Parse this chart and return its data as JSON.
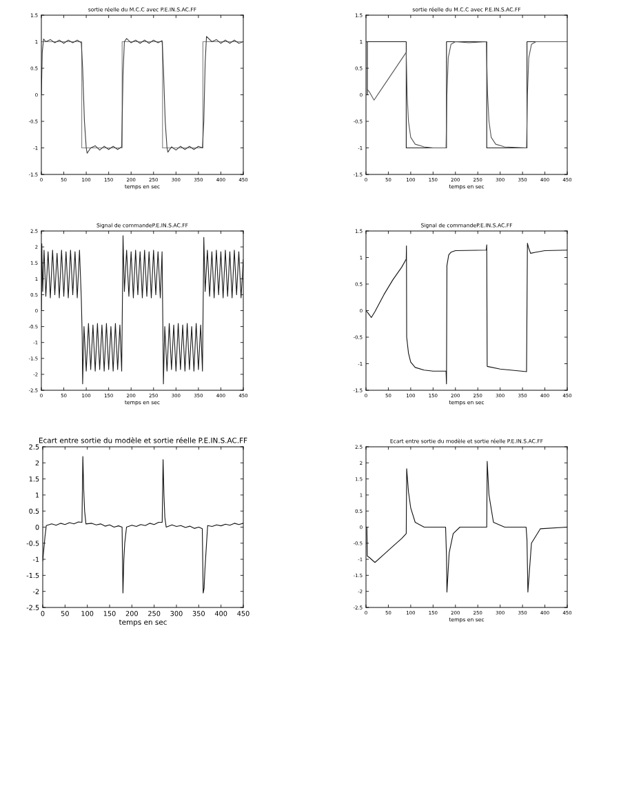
{
  "chart_data": [
    {
      "type": "line",
      "title": "sortie réelle du M.C.C avec P.E.IN.S.AC.FF",
      "xlabel": "temps en sec",
      "xlim": [
        0,
        450
      ],
      "xticks": [
        0,
        50,
        100,
        150,
        200,
        250,
        300,
        350,
        400,
        450
      ],
      "ylim": [
        -1.5,
        1.5
      ],
      "yticks": [
        -1.5,
        -1,
        -0.5,
        0,
        0.5,
        1,
        1.5
      ],
      "series": [
        {
          "color": "#808080",
          "x": [
            0,
            90,
            90,
            180,
            180,
            270,
            270,
            360,
            360,
            450
          ],
          "values": [
            1,
            1,
            -1,
            -1,
            1,
            1,
            -1,
            -1,
            1,
            1
          ]
        },
        {
          "color": "#3a3a3a",
          "x": [
            0,
            2,
            5,
            10,
            20,
            30,
            40,
            50,
            60,
            70,
            80,
            89,
            92,
            96,
            100,
            102,
            110,
            120,
            130,
            140,
            150,
            160,
            170,
            179,
            182,
            185,
            190,
            200,
            210,
            220,
            230,
            240,
            250,
            260,
            269,
            272,
            276,
            280,
            282,
            290,
            300,
            310,
            320,
            330,
            340,
            350,
            359,
            362,
            365,
            368,
            380,
            390,
            400,
            410,
            420,
            430,
            440,
            450
          ],
          "values": [
            0,
            0.8,
            1.05,
            1.0,
            1.04,
            0.98,
            1.03,
            0.97,
            1.03,
            0.98,
            1.03,
            0.98,
            0.5,
            -0.5,
            -1.0,
            -1.1,
            -1.0,
            -0.96,
            -1.04,
            -0.97,
            -1.03,
            -0.97,
            -1.03,
            -0.98,
            0.4,
            1.0,
            1.06,
            0.98,
            1.03,
            0.97,
            1.03,
            0.97,
            1.03,
            0.98,
            1.02,
            0.5,
            -0.5,
            -1.0,
            -1.08,
            -0.98,
            -1.04,
            -0.97,
            -1.03,
            -0.97,
            -1.03,
            -0.97,
            -1.0,
            -0.5,
            0.6,
            1.1,
            1.0,
            1.04,
            0.97,
            1.03,
            0.97,
            1.03,
            0.97,
            1.0
          ]
        }
      ]
    },
    {
      "type": "line",
      "title": "sortie réelle du M.C.C avec P.E.IN.S.AC.FF",
      "xlabel": "temps en sec",
      "xlim": [
        0,
        450
      ],
      "xticks": [
        0,
        50,
        100,
        150,
        200,
        250,
        300,
        350,
        400,
        450
      ],
      "ylim": [
        -1.5,
        1.5
      ],
      "yticks": [
        -1.5,
        -1,
        -0.5,
        0,
        0.5,
        1,
        1.5
      ],
      "series": [
        {
          "color": "#1a1a1a",
          "x": [
            3,
            3,
            90,
            90,
            180,
            180,
            270,
            270,
            360,
            360,
            450
          ],
          "values": [
            0,
            1,
            1,
            -1,
            -1,
            1,
            1,
            -1,
            -1,
            1,
            1
          ]
        },
        {
          "color": "#555555",
          "x": [
            3,
            8,
            18,
            30,
            50,
            70,
            90,
            92,
            95,
            100,
            110,
            130,
            150,
            179,
            181,
            184,
            190,
            200,
            230,
            269,
            272,
            275,
            280,
            290,
            310,
            359,
            361,
            364,
            370,
            380,
            450
          ],
          "values": [
            0.1,
            0.05,
            -0.1,
            0.05,
            0.3,
            0.55,
            0.8,
            0.0,
            -0.5,
            -0.8,
            -0.93,
            -0.98,
            -1.0,
            -1.0,
            0.0,
            0.7,
            0.95,
            1.0,
            0.98,
            1.0,
            0.0,
            -0.5,
            -0.8,
            -0.93,
            -0.98,
            -1.0,
            0.0,
            0.7,
            0.95,
            1.0,
            1.0
          ]
        }
      ]
    },
    {
      "type": "line",
      "title": "Signal de commandeP.E.IN.S.AC.FF",
      "xlabel": "temps en sec",
      "xlim": [
        0,
        450
      ],
      "xticks": [
        0,
        50,
        100,
        150,
        200,
        250,
        300,
        350,
        400,
        450
      ],
      "ylim": [
        -2.5,
        2.5
      ],
      "yticks": [
        -2.5,
        -2,
        -1.5,
        -1,
        -0.5,
        0,
        0.5,
        1,
        1.5,
        2,
        2.5
      ],
      "series": [
        {
          "color": "#1a1a1a",
          "x": [
            0,
            1,
            3,
            6,
            10,
            15,
            20,
            25,
            30,
            35,
            40,
            45,
            50,
            55,
            60,
            65,
            70,
            75,
            80,
            85,
            89,
            91,
            92,
            95,
            100,
            105,
            110,
            115,
            120,
            125,
            130,
            135,
            140,
            145,
            150,
            155,
            160,
            165,
            170,
            175,
            179,
            181,
            182,
            185,
            190,
            195,
            200,
            205,
            210,
            215,
            220,
            225,
            230,
            235,
            240,
            245,
            250,
            255,
            260,
            265,
            269,
            271,
            272,
            275,
            280,
            285,
            290,
            295,
            300,
            305,
            310,
            315,
            320,
            325,
            330,
            335,
            340,
            345,
            350,
            355,
            359,
            361,
            362,
            365,
            370,
            375,
            380,
            385,
            390,
            395,
            400,
            405,
            410,
            415,
            420,
            425,
            430,
            435,
            440,
            445,
            450
          ],
          "values": [
            0,
            2.1,
            0.6,
            1.9,
            0.45,
            1.85,
            0.4,
            1.9,
            0.5,
            1.8,
            0.4,
            1.9,
            0.45,
            1.85,
            0.4,
            1.9,
            0.5,
            1.85,
            0.4,
            1.9,
            0.4,
            -0.8,
            -2.3,
            -0.5,
            -1.9,
            -0.4,
            -1.85,
            -0.45,
            -1.9,
            -0.4,
            -1.85,
            -0.45,
            -1.9,
            -0.4,
            -1.85,
            -0.5,
            -1.9,
            -0.4,
            -1.85,
            -0.45,
            -1.9,
            0.8,
            2.35,
            0.6,
            1.9,
            0.45,
            1.85,
            0.4,
            1.9,
            0.5,
            1.85,
            0.4,
            1.9,
            0.45,
            1.85,
            0.4,
            1.9,
            0.5,
            1.85,
            0.4,
            1.85,
            -0.8,
            -2.3,
            -0.5,
            -1.9,
            -0.4,
            -1.85,
            -0.45,
            -1.9,
            -0.4,
            -1.85,
            -0.45,
            -1.9,
            -0.4,
            -1.85,
            -0.5,
            -1.9,
            -0.4,
            -1.85,
            -0.45,
            -1.9,
            0.8,
            2.3,
            0.6,
            1.9,
            0.45,
            1.85,
            0.4,
            1.9,
            0.5,
            1.85,
            0.4,
            1.9,
            0.45,
            1.85,
            0.4,
            1.9,
            0.5,
            1.85,
            0.4,
            1.6
          ]
        }
      ]
    },
    {
      "type": "line",
      "title": "Signal de commandeP.E.IN.S.AC.FF",
      "xlabel": "temps en sec",
      "xlim": [
        0,
        450
      ],
      "xticks": [
        0,
        50,
        100,
        150,
        200,
        250,
        300,
        350,
        400,
        450
      ],
      "ylim": [
        -1.5,
        1.5
      ],
      "yticks": [
        -1.5,
        -1,
        -0.5,
        0,
        0.5,
        1,
        1.5
      ],
      "series": [
        {
          "color": "#111111",
          "x": [
            0,
            5,
            12,
            20,
            40,
            60,
            80,
            90,
            90.5,
            91,
            95,
            100,
            110,
            130,
            150,
            179,
            180,
            181,
            185,
            190,
            200,
            269,
            270,
            271,
            300,
            359,
            361,
            363,
            368,
            380,
            400,
            450
          ],
          "values": [
            0,
            -0.05,
            -0.13,
            -0.02,
            0.3,
            0.58,
            0.82,
            0.97,
            1.22,
            -0.5,
            -0.8,
            -0.97,
            -1.07,
            -1.12,
            -1.14,
            -1.14,
            -1.38,
            0.85,
            1.05,
            1.1,
            1.13,
            1.14,
            1.24,
            -1.05,
            -1.1,
            -1.15,
            1.27,
            1.2,
            1.08,
            1.1,
            1.13,
            1.14
          ]
        }
      ]
    },
    {
      "type": "line",
      "title": "Ecart entre sortie du modèle et sortie réelle P.E.IN.S.AC.FF",
      "xlabel": "temps en sec",
      "xlim": [
        0,
        450
      ],
      "xticks": [
        0,
        50,
        100,
        150,
        200,
        250,
        300,
        350,
        400,
        450
      ],
      "ylim": [
        -2.5,
        2.5
      ],
      "yticks": [
        -2.5,
        -2,
        -1.5,
        -1,
        -0.5,
        0,
        0.5,
        1,
        1.5,
        2,
        2.5
      ],
      "series": [
        {
          "color": "#111111",
          "x": [
            0,
            3,
            5,
            8,
            20,
            30,
            40,
            50,
            60,
            70,
            80,
            88,
            90,
            92,
            94,
            97,
            110,
            120,
            130,
            140,
            150,
            160,
            170,
            178,
            180,
            182,
            184,
            188,
            200,
            210,
            220,
            230,
            240,
            250,
            260,
            268,
            270,
            272,
            274,
            277,
            290,
            300,
            310,
            320,
            330,
            340,
            350,
            358,
            360,
            362,
            364,
            370,
            380,
            390,
            400,
            410,
            420,
            430,
            440,
            450
          ],
          "values": [
            -1.05,
            -0.6,
            -0.3,
            0.05,
            0.1,
            0.06,
            0.12,
            0.08,
            0.14,
            0.1,
            0.16,
            0.15,
            2.2,
            1.15,
            0.5,
            0.1,
            0.12,
            0.07,
            0.1,
            0.03,
            0.07,
            0.0,
            0.04,
            0.0,
            -2.05,
            -1.0,
            -0.5,
            0.0,
            0.06,
            0.02,
            0.08,
            0.05,
            0.12,
            0.08,
            0.15,
            0.15,
            2.1,
            1.0,
            0.3,
            0.0,
            0.07,
            0.02,
            0.05,
            -0.01,
            0.03,
            -0.04,
            0.0,
            -0.05,
            -2.05,
            -1.9,
            -1.3,
            0.05,
            0.02,
            0.07,
            0.04,
            0.09,
            0.06,
            0.12,
            0.08,
            0.12
          ]
        }
      ]
    },
    {
      "type": "line",
      "title": "Ecart entre sortie du modèle et sortie réelle P.E.IN.S.AC.FF",
      "xlabel": "temps en sec",
      "xlim": [
        0,
        450
      ],
      "xticks": [
        0,
        50,
        100,
        150,
        200,
        250,
        300,
        350,
        400,
        450
      ],
      "ylim": [
        -2.5,
        2.5
      ],
      "yticks": [
        -2.5,
        -2,
        -1.5,
        -1,
        -0.5,
        0,
        0.5,
        1,
        1.5,
        2,
        2.5
      ],
      "series": [
        {
          "color": "#111111",
          "x": [
            2,
            3,
            8,
            20,
            40,
            60,
            80,
            90,
            91,
            95,
            100,
            110,
            130,
            178,
            180,
            181,
            186,
            195,
            210,
            268,
            270,
            271,
            275,
            285,
            310,
            358,
            360,
            362,
            370,
            390,
            450
          ],
          "values": [
            0,
            -0.9,
            -0.95,
            -1.1,
            -0.85,
            -0.6,
            -0.35,
            -0.2,
            1.82,
            1.1,
            0.6,
            0.15,
            0.0,
            0.0,
            -0.9,
            -2.02,
            -0.8,
            -0.2,
            0.0,
            0.0,
            0.0,
            2.05,
            1.0,
            0.15,
            0.0,
            0.0,
            -0.4,
            -2.02,
            -0.5,
            -0.05,
            0.0
          ]
        }
      ]
    }
  ]
}
